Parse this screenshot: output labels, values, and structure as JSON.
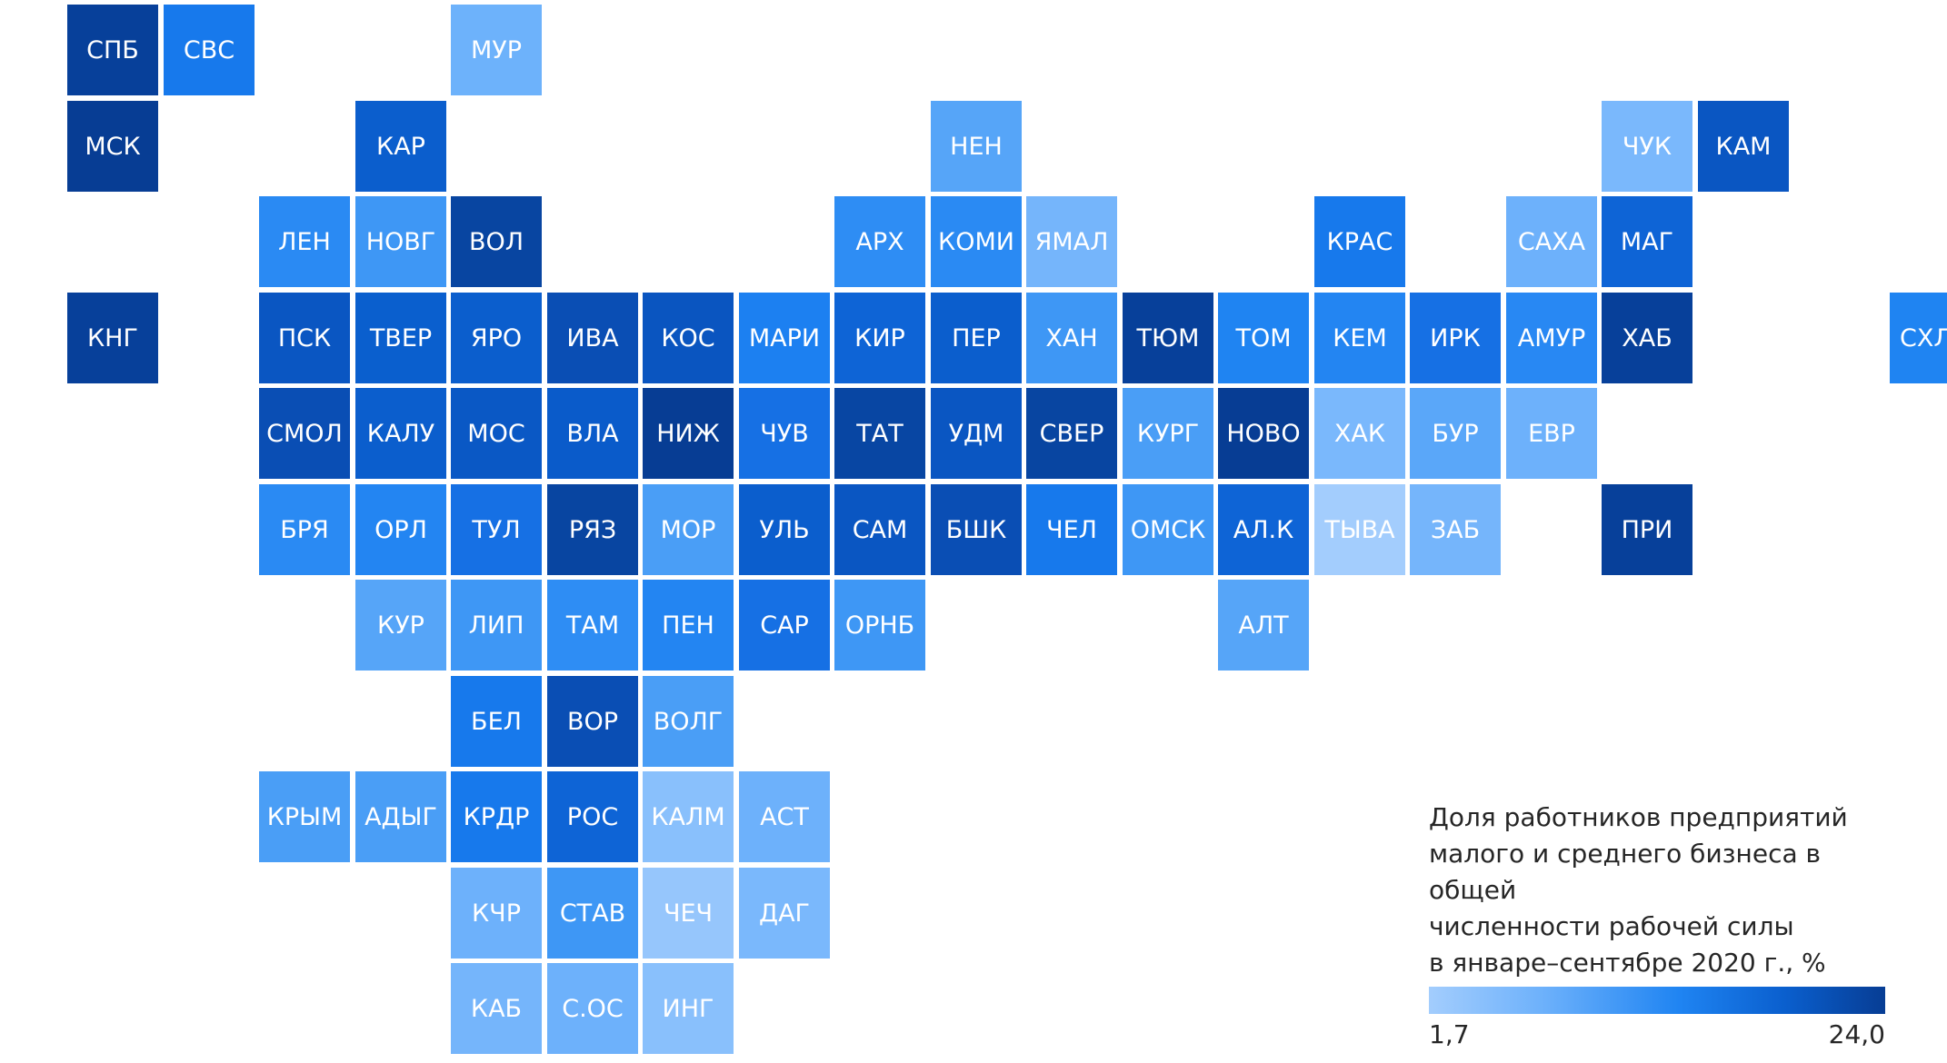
{
  "legend": {
    "title": "Доля работников предприятий\nмалого и среднего бизнеса в общей\nчисленности рабочей силы\nв январе–сентябре 2020 г., %",
    "min": "1,7",
    "max": "24,0",
    "colors": [
      "#a3cdfd",
      "#6db1fb",
      "#1f84f2",
      "#0a5fce",
      "#073d94"
    ]
  },
  "regions": [
    {
      "label": "СПБ",
      "row": 0,
      "col": 0,
      "color": "#07409a"
    },
    {
      "label": "СВС",
      "row": 0,
      "col": 1,
      "color": "#1779ec"
    },
    {
      "label": "МУР",
      "row": 0,
      "col": 4,
      "color": "#6db2fb"
    },
    {
      "label": "МСК",
      "row": 1,
      "col": 0,
      "color": "#073d94"
    },
    {
      "label": "КАР",
      "row": 1,
      "col": 3,
      "color": "#0b5ecd"
    },
    {
      "label": "НЕН",
      "row": 1,
      "col": 9,
      "color": "#56a5f8"
    },
    {
      "label": "ЧУК",
      "row": 1,
      "col": 16,
      "color": "#7ab8fc"
    },
    {
      "label": "КАМ",
      "row": 1,
      "col": 17,
      "color": "#0a56c2"
    },
    {
      "label": "ЛЕН",
      "row": 2,
      "col": 2,
      "color": "#2a8af3"
    },
    {
      "label": "НОВГ",
      "row": 2,
      "col": 3,
      "color": "#3e97f5"
    },
    {
      "label": "ВОЛ",
      "row": 2,
      "col": 4,
      "color": "#0845a1"
    },
    {
      "label": "АРХ",
      "row": 2,
      "col": 8,
      "color": "#2e8df4"
    },
    {
      "label": "КОМИ",
      "row": 2,
      "col": 9,
      "color": "#2a8af3"
    },
    {
      "label": "ЯМАЛ",
      "row": 2,
      "col": 10,
      "color": "#75b5fb"
    },
    {
      "label": "КРАС",
      "row": 2,
      "col": 13,
      "color": "#1779ec"
    },
    {
      "label": "САХА",
      "row": 2,
      "col": 15,
      "color": "#6db1fb"
    },
    {
      "label": "МАГ",
      "row": 2,
      "col": 16,
      "color": "#0e64d6"
    },
    {
      "label": "КНГ",
      "row": 3,
      "col": 0,
      "color": "#07409a"
    },
    {
      "label": "ПСК",
      "row": 3,
      "col": 2,
      "color": "#0a56c2"
    },
    {
      "label": "ТВЕР",
      "row": 3,
      "col": 3,
      "color": "#0a5fce"
    },
    {
      "label": "ЯРО",
      "row": 3,
      "col": 4,
      "color": "#0b5ecd"
    },
    {
      "label": "ИВА",
      "row": 3,
      "col": 5,
      "color": "#0a4eb4"
    },
    {
      "label": "КОС",
      "row": 3,
      "col": 6,
      "color": "#0a55c0"
    },
    {
      "label": "МАРИ",
      "row": 3,
      "col": 7,
      "color": "#1c80f1"
    },
    {
      "label": "КИР",
      "row": 3,
      "col": 8,
      "color": "#0e64d6"
    },
    {
      "label": "ПЕР",
      "row": 3,
      "col": 9,
      "color": "#0b5ecd"
    },
    {
      "label": "ХАН",
      "row": 3,
      "col": 10,
      "color": "#3e97f5"
    },
    {
      "label": "ТЮМ",
      "row": 3,
      "col": 11,
      "color": "#07409a"
    },
    {
      "label": "ТОМ",
      "row": 3,
      "col": 12,
      "color": "#1f84f2"
    },
    {
      "label": "КЕМ",
      "row": 3,
      "col": 13,
      "color": "#2385f2"
    },
    {
      "label": "ИРК",
      "row": 3,
      "col": 14,
      "color": "#1670e4"
    },
    {
      "label": "АМУР",
      "row": 3,
      "col": 15,
      "color": "#2888f3"
    },
    {
      "label": "ХАБ",
      "row": 3,
      "col": 16,
      "color": "#07409a"
    },
    {
      "label": "СХЛН",
      "row": 3,
      "col": 19,
      "color": "#1f84f2"
    },
    {
      "label": "СМОЛ",
      "row": 4,
      "col": 2,
      "color": "#0a4eb4"
    },
    {
      "label": "КАЛУ",
      "row": 4,
      "col": 3,
      "color": "#0b5ecd"
    },
    {
      "label": "МОС",
      "row": 4,
      "col": 4,
      "color": "#0a58c5"
    },
    {
      "label": "ВЛА",
      "row": 4,
      "col": 5,
      "color": "#0a5bca"
    },
    {
      "label": "НИЖ",
      "row": 4,
      "col": 6,
      "color": "#073d94"
    },
    {
      "label": "ЧУВ",
      "row": 4,
      "col": 7,
      "color": "#1670e4"
    },
    {
      "label": "ТАТ",
      "row": 4,
      "col": 8,
      "color": "#0846a3"
    },
    {
      "label": "УДМ",
      "row": 4,
      "col": 9,
      "color": "#0a56c2"
    },
    {
      "label": "СВЕР",
      "row": 4,
      "col": 10,
      "color": "#0845a1"
    },
    {
      "label": "КУРГ",
      "row": 4,
      "col": 11,
      "color": "#4a9ef6"
    },
    {
      "label": "НОВО",
      "row": 4,
      "col": 12,
      "color": "#073d94"
    },
    {
      "label": "ХАК",
      "row": 4,
      "col": 13,
      "color": "#7ab8fc"
    },
    {
      "label": "БУР",
      "row": 4,
      "col": 14,
      "color": "#5aa7f9"
    },
    {
      "label": "ЕВР",
      "row": 4,
      "col": 15,
      "color": "#6db1fb"
    },
    {
      "label": "БРЯ",
      "row": 5,
      "col": 2,
      "color": "#2a8af3"
    },
    {
      "label": "ОРЛ",
      "row": 5,
      "col": 3,
      "color": "#2385f2"
    },
    {
      "label": "ТУЛ",
      "row": 5,
      "col": 4,
      "color": "#1670e4"
    },
    {
      "label": "РЯЗ",
      "row": 5,
      "col": 5,
      "color": "#0845a1"
    },
    {
      "label": "МОР",
      "row": 5,
      "col": 6,
      "color": "#4a9ef6"
    },
    {
      "label": "УЛЬ",
      "row": 5,
      "col": 7,
      "color": "#0b5ecd"
    },
    {
      "label": "САМ",
      "row": 5,
      "col": 8,
      "color": "#0a56c2"
    },
    {
      "label": "БШК",
      "row": 5,
      "col": 9,
      "color": "#0a4eb4"
    },
    {
      "label": "ЧЕЛ",
      "row": 5,
      "col": 10,
      "color": "#1779ec"
    },
    {
      "label": "ОМСК",
      "row": 5,
      "col": 11,
      "color": "#3e97f5"
    },
    {
      "label": "АЛ.К",
      "row": 5,
      "col": 12,
      "color": "#0e64d6"
    },
    {
      "label": "ТЫВА",
      "row": 5,
      "col": 13,
      "color": "#a3cdfd"
    },
    {
      "label": "ЗАБ",
      "row": 5,
      "col": 14,
      "color": "#75b5fb"
    },
    {
      "label": "ПРИ",
      "row": 5,
      "col": 16,
      "color": "#07409a"
    },
    {
      "label": "КУР",
      "row": 6,
      "col": 3,
      "color": "#56a5f8"
    },
    {
      "label": "ЛИП",
      "row": 6,
      "col": 4,
      "color": "#3e97f5"
    },
    {
      "label": "ТАМ",
      "row": 6,
      "col": 5,
      "color": "#2e8df4"
    },
    {
      "label": "ПЕН",
      "row": 6,
      "col": 6,
      "color": "#2385f2"
    },
    {
      "label": "САР",
      "row": 6,
      "col": 7,
      "color": "#1670e4"
    },
    {
      "label": "ОРНБ",
      "row": 6,
      "col": 8,
      "color": "#3e97f5"
    },
    {
      "label": "АЛТ",
      "row": 6,
      "col": 12,
      "color": "#56a5f8"
    },
    {
      "label": "БЕЛ",
      "row": 7,
      "col": 4,
      "color": "#1779ec"
    },
    {
      "label": "ВОР",
      "row": 7,
      "col": 5,
      "color": "#0a4eb4"
    },
    {
      "label": "ВОЛГ",
      "row": 7,
      "col": 6,
      "color": "#4a9ef6"
    },
    {
      "label": "КРЫМ",
      "row": 8,
      "col": 2,
      "color": "#4a9ef6"
    },
    {
      "label": "АДЫГ",
      "row": 8,
      "col": 3,
      "color": "#4a9ef6"
    },
    {
      "label": "КРДР",
      "row": 8,
      "col": 4,
      "color": "#1779ec"
    },
    {
      "label": "РОС",
      "row": 8,
      "col": 5,
      "color": "#0e64d6"
    },
    {
      "label": "КАЛМ",
      "row": 8,
      "col": 6,
      "color": "#89c0fc"
    },
    {
      "label": "АСТ",
      "row": 8,
      "col": 7,
      "color": "#6db1fb"
    },
    {
      "label": "КЧР",
      "row": 9,
      "col": 4,
      "color": "#6db1fb"
    },
    {
      "label": "СТАВ",
      "row": 9,
      "col": 5,
      "color": "#3e97f5"
    },
    {
      "label": "ЧЕЧ",
      "row": 9,
      "col": 6,
      "color": "#96c6fc"
    },
    {
      "label": "ДАГ",
      "row": 9,
      "col": 7,
      "color": "#7ab8fc"
    },
    {
      "label": "КАБ",
      "row": 10,
      "col": 4,
      "color": "#75b5fb"
    },
    {
      "label": "С.ОС",
      "row": 10,
      "col": 5,
      "color": "#6db1fb"
    },
    {
      "label": "ИНГ",
      "row": 10,
      "col": 6,
      "color": "#89c0fc"
    }
  ]
}
